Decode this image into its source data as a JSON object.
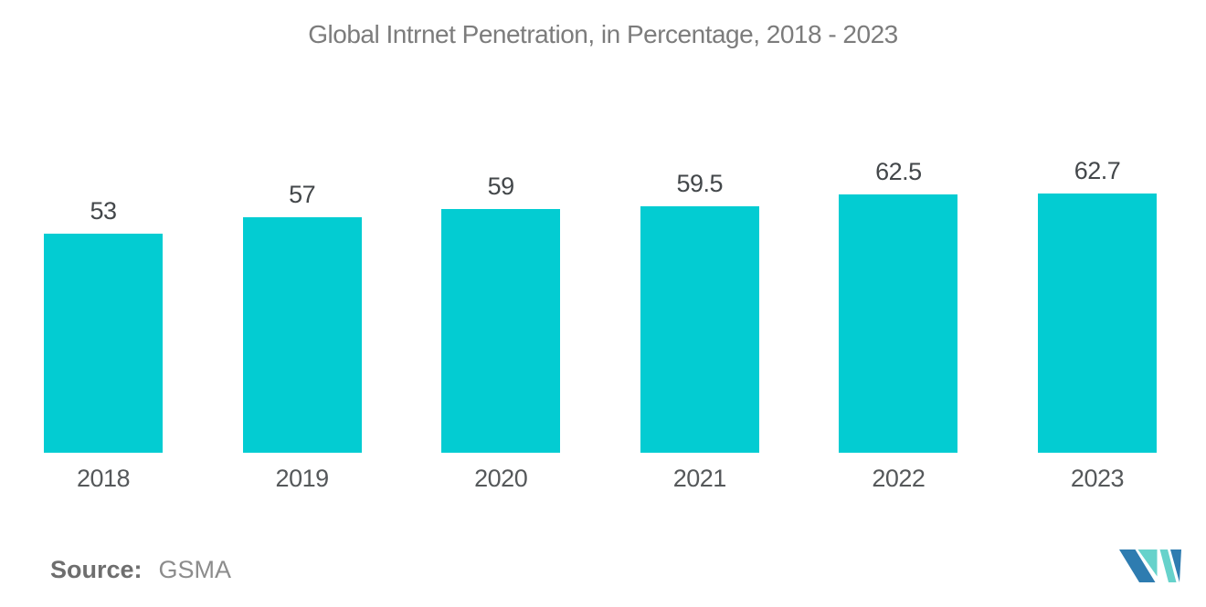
{
  "title": "Global Intrnet Penetration, in Percentage, 2018 - 2023",
  "chart_data": {
    "type": "bar",
    "title": "Global Intrnet Penetration, in Percentage, 2018 - 2023",
    "categories": [
      "2018",
      "2019",
      "2020",
      "2021",
      "2022",
      "2023"
    ],
    "values": [
      53,
      57,
      59,
      59.5,
      62.5,
      62.7
    ],
    "value_labels": [
      "53",
      "57",
      "59",
      "59.5",
      "62.5",
      "62.7"
    ],
    "xlabel": "",
    "ylabel": "",
    "ylim": [
      0,
      70
    ],
    "grid": false,
    "legend": "none",
    "bar_color": "#03ccd2"
  },
  "footer": {
    "source_label": "Source:",
    "source_value": "GSMA"
  },
  "icons": {
    "brand_logo": "m-mark-logo"
  },
  "colors": {
    "bar": "#03ccd2",
    "title_text": "#7c7c7c",
    "value_text": "#43474a",
    "axis_text": "#55585a",
    "source_label_text": "#6e6e6e",
    "source_value_text": "#8c8c8c",
    "logo_blue": "#2e7cb0",
    "logo_teal": "#66d2cb",
    "background": "#ffffff"
  }
}
